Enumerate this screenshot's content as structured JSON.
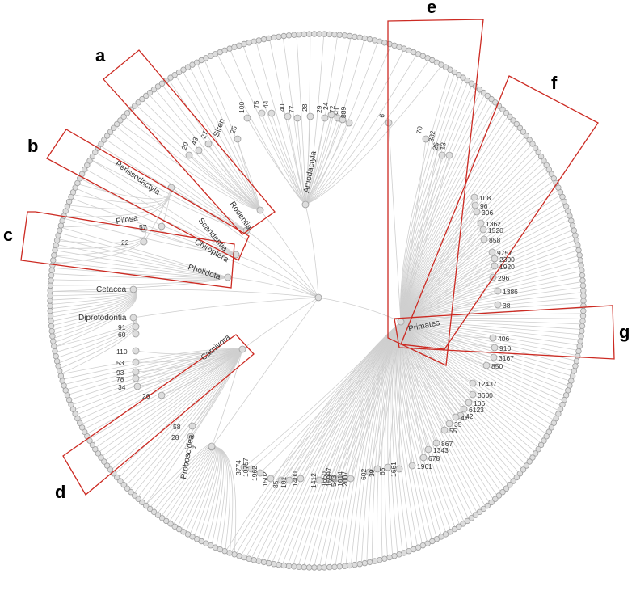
{
  "colors": {
    "edge": "#cfcfcf",
    "node_fill": "#dddddd",
    "node_stroke": "#9e9e9e",
    "highlight": "#cc2a22"
  },
  "clades": {
    "artiodactyla": "Artiodactyla",
    "rodentia": "Rodentia",
    "scandentia": "Scandentia",
    "chiroptera": "Chiroptera",
    "perissodactyla": "Perissodactyla",
    "pholidota": "Pholidota",
    "pilosa": "Pilosa",
    "cetacea": "Cetacea",
    "diprotodontia": "Diprotodontia",
    "carnivora": "Carnivora",
    "proboscidea": "Proboscidea",
    "primates": "Primates",
    "sirenia": "Siren"
  },
  "panels": [
    "a",
    "b",
    "c",
    "d",
    "e",
    "f",
    "g"
  ],
  "counts": {
    "art": [
      "100",
      "75",
      "44",
      "40",
      "77",
      "28",
      "29",
      "24",
      "72",
      "91",
      "889"
    ],
    "rod": [
      "25",
      "27",
      "43",
      "20"
    ],
    "per": [
      "57",
      "22"
    ],
    "dip": [
      "91",
      "60"
    ],
    "car": [
      "110",
      "53",
      "93",
      "78",
      "34",
      "26",
      "58",
      "28",
      "5"
    ],
    "pri_e": [
      "6",
      "70",
      "382",
      "26",
      "13"
    ],
    "pri_f": [
      "108",
      "96",
      "306",
      "1362",
      "1520",
      "858",
      "9757",
      "2390",
      "1920",
      "296",
      "1386",
      "38"
    ],
    "pri_g": [
      "406",
      "910",
      "3167",
      "850",
      "12437",
      "3600",
      "106",
      "6123",
      "42",
      "47",
      "35",
      "55",
      "867",
      "1343",
      "678",
      "1961"
    ],
    "bot": [
      "3774",
      "10757",
      "1962",
      "1502",
      "85",
      "101",
      "1400",
      "1412",
      "1650",
      "15997",
      "543",
      "1014",
      "2007",
      "602",
      "39",
      "65",
      "1661"
    ]
  }
}
